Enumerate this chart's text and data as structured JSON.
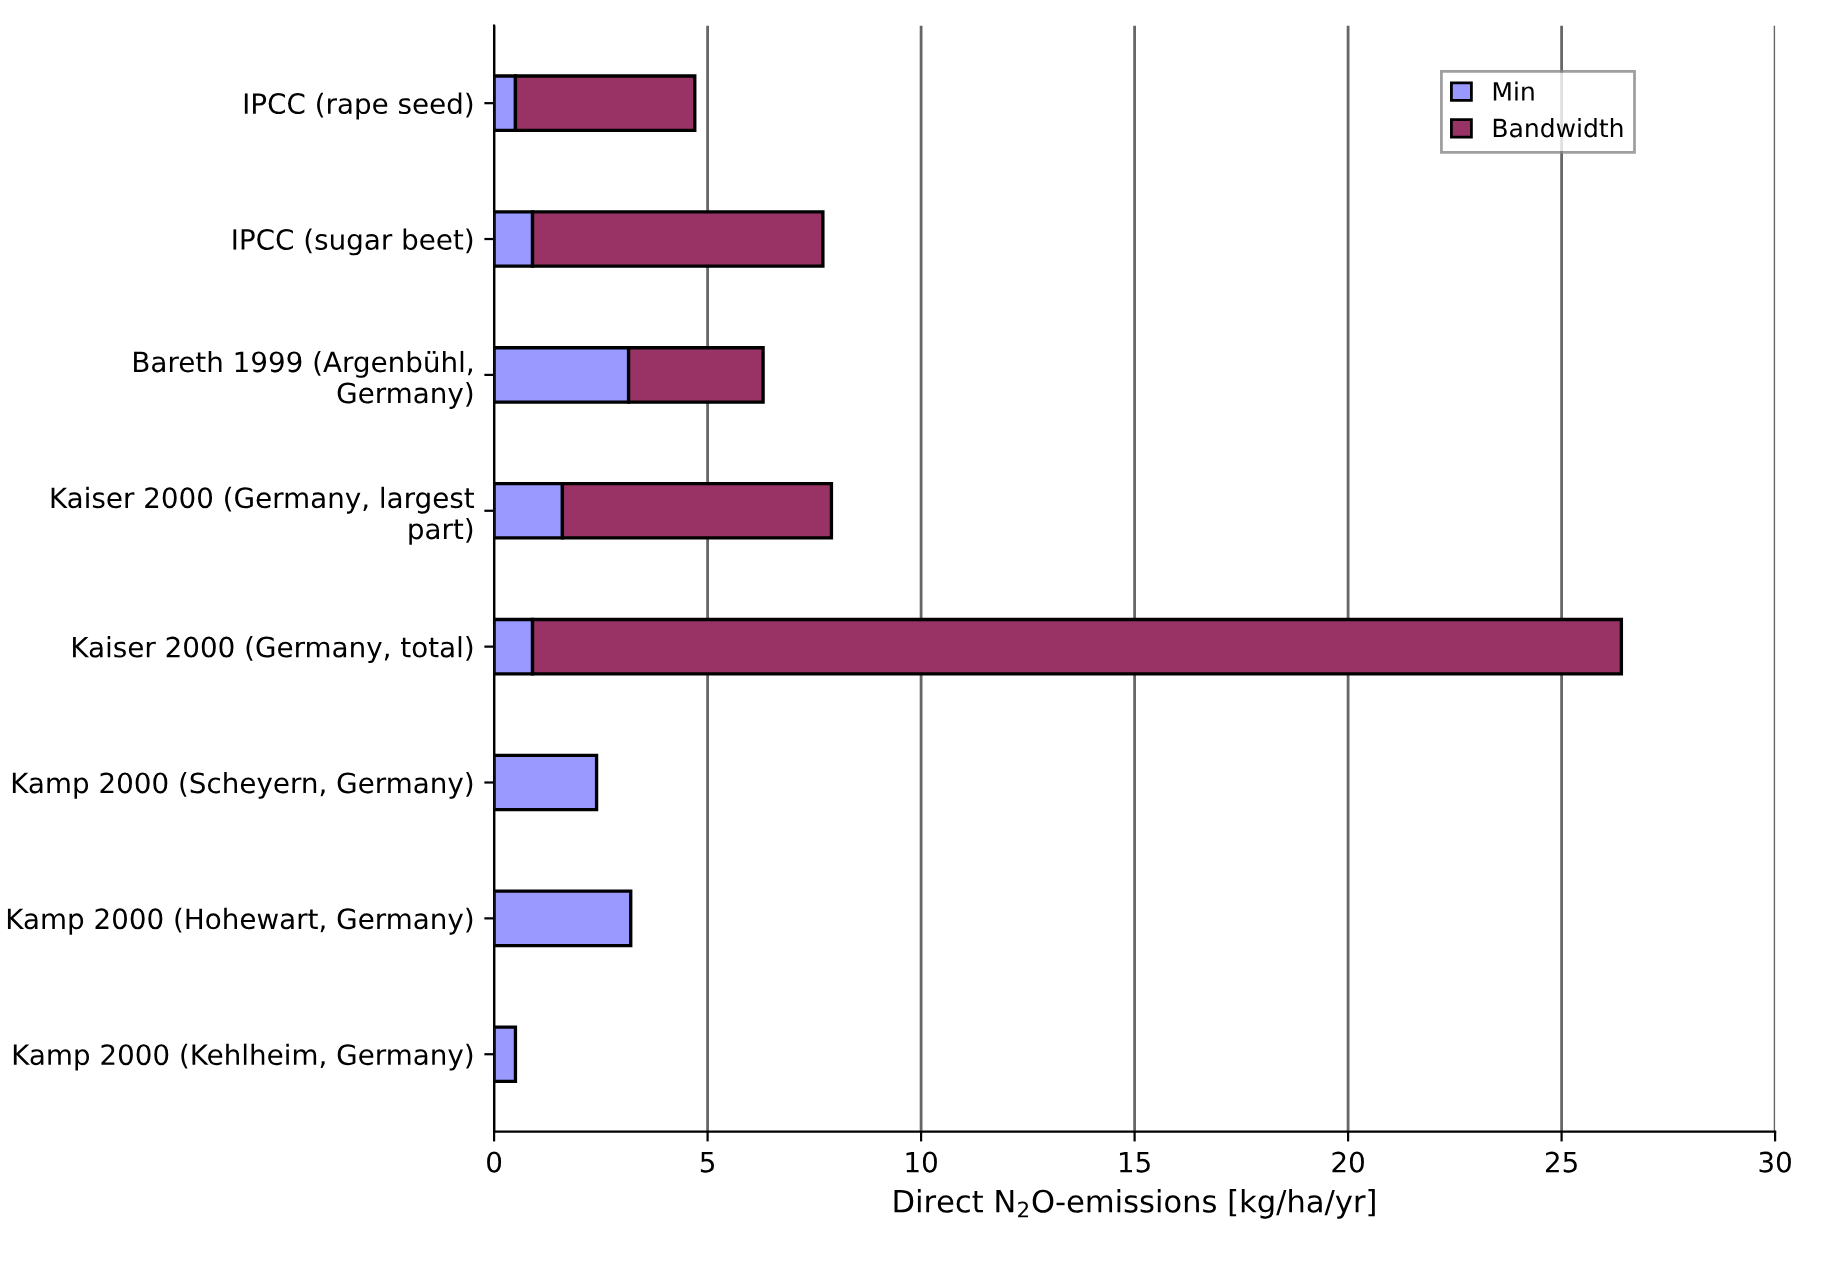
{
  "chart_data": {
    "type": "bar",
    "orientation": "horizontal",
    "stacked": true,
    "categories": [
      "IPCC (rape seed)",
      "IPCC (sugar beet)",
      "Bareth 1999 (Argenbühl, Germany)",
      "Kaiser 2000 (Germany, largest part)",
      "Kaiser 2000 (Germany, total)",
      "Kamp 2000 (Scheyern, Germany)",
      "Kamp 2000 (Hohewart, Germany)",
      "Kamp 2000 (Kehlheim, Germany)"
    ],
    "series": [
      {
        "name": "Min",
        "color": "#9999ff",
        "values": [
          0.5,
          0.9,
          3.15,
          1.6,
          0.9,
          2.4,
          3.2,
          0.5
        ]
      },
      {
        "name": "Bandwidth",
        "color": "#993366",
        "values": [
          4.2,
          6.8,
          3.15,
          6.3,
          25.5,
          null,
          null,
          null
        ]
      }
    ],
    "xlabel": "Direct N$_{2}$O-emissions [kg/ha/yr]",
    "xlim": [
      0,
      30
    ],
    "xticks": [
      0,
      5,
      10,
      15,
      20,
      25,
      30
    ],
    "grid": "x",
    "legend": "top right"
  }
}
